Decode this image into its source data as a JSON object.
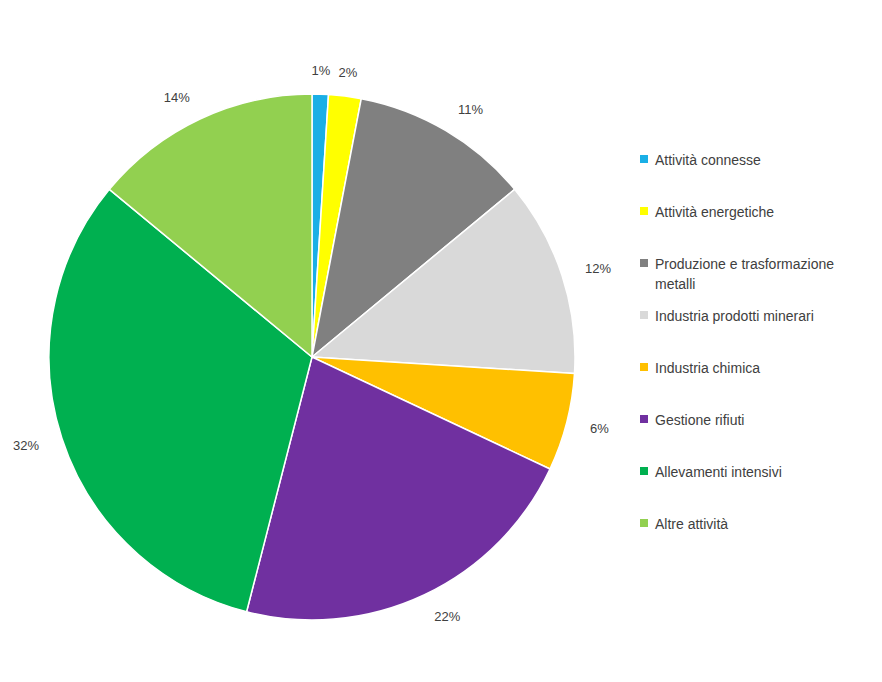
{
  "chart_data": {
    "type": "pie",
    "categories": [
      "Attività connesse",
      "Attività energetiche",
      "Produzione e trasformazione metalli",
      "Industria prodotti minerari",
      "Industria chimica",
      "Gestione rifiuti",
      "Allevamenti intensivi",
      "Altre attività"
    ],
    "values": [
      1,
      2,
      11,
      12,
      6,
      22,
      32,
      14
    ],
    "value_labels": [
      "1%",
      "2%",
      "11%",
      "12%",
      "6%",
      "22%",
      "32%",
      "14%"
    ],
    "colors": [
      "#1aafe6",
      "#ffff00",
      "#808080",
      "#d9d9d9",
      "#ffc000",
      "#7030a0",
      "#00b050",
      "#92d050"
    ],
    "data_labels": true,
    "legend": "right"
  }
}
